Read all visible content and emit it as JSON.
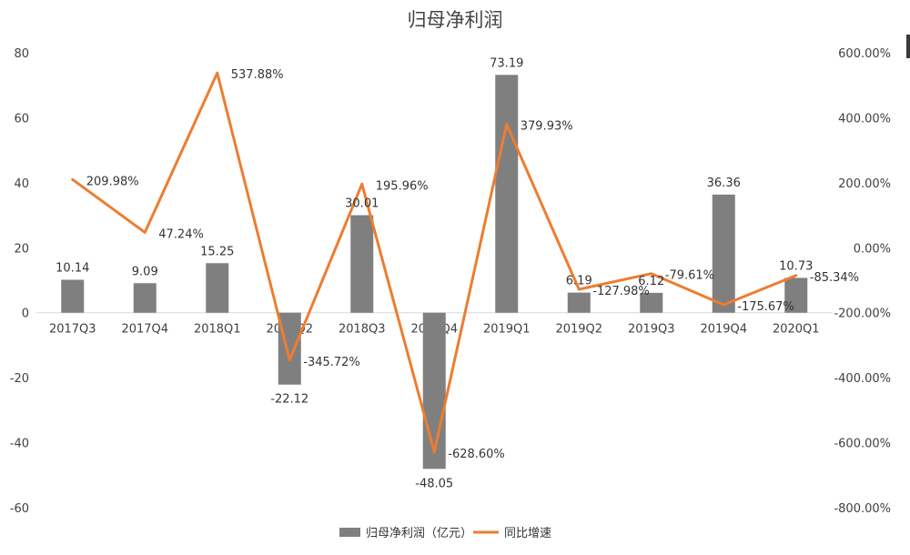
{
  "chart_data": {
    "type": "bar",
    "title": "归母净利润",
    "categories": [
      "2017Q3",
      "2017Q4",
      "2018Q1",
      "2018Q2",
      "2018Q3",
      "2018Q4",
      "2019Q1",
      "2019Q2",
      "2019Q3",
      "2019Q4",
      "2020Q1"
    ],
    "series": [
      {
        "name": "归母净利润（亿元）",
        "type": "bar",
        "axis": "left",
        "color": "#7f7f7f",
        "values": [
          10.14,
          9.09,
          15.25,
          -22.12,
          30.01,
          -48.05,
          73.19,
          6.19,
          6.12,
          36.36,
          10.73
        ],
        "labels": [
          "10.14",
          "9.09",
          "15.25",
          "-22.12",
          "30.01",
          "-48.05",
          "73.19",
          "6.19",
          "6.12",
          "36.36",
          "10.73"
        ]
      },
      {
        "name": "同比增速",
        "type": "line",
        "axis": "right",
        "color": "#ed7d31",
        "values": [
          209.98,
          47.24,
          537.88,
          -345.72,
          195.96,
          -628.6,
          379.93,
          -127.98,
          -79.61,
          -175.67,
          -85.34
        ],
        "labels": [
          "209.98%",
          "47.24%",
          "537.88%",
          "-345.72%",
          "195.96%",
          "-628.60%",
          "379.93%",
          "-127.98%",
          "-79.61%",
          "-175.67%",
          "-85.34%"
        ]
      }
    ],
    "y_left": {
      "min": -60,
      "max": 80,
      "ticks": [
        "-60",
        "-40",
        "-20",
        "0",
        "20",
        "40",
        "60",
        "80"
      ]
    },
    "y_right": {
      "min": -800,
      "max": 600,
      "ticks": [
        "-800.00%",
        "-600.00%",
        "-400.00%",
        "-200.00%",
        "0.00%",
        "200.00%",
        "400.00%",
        "600.00%"
      ]
    },
    "grid": false,
    "legend": "bottom"
  }
}
